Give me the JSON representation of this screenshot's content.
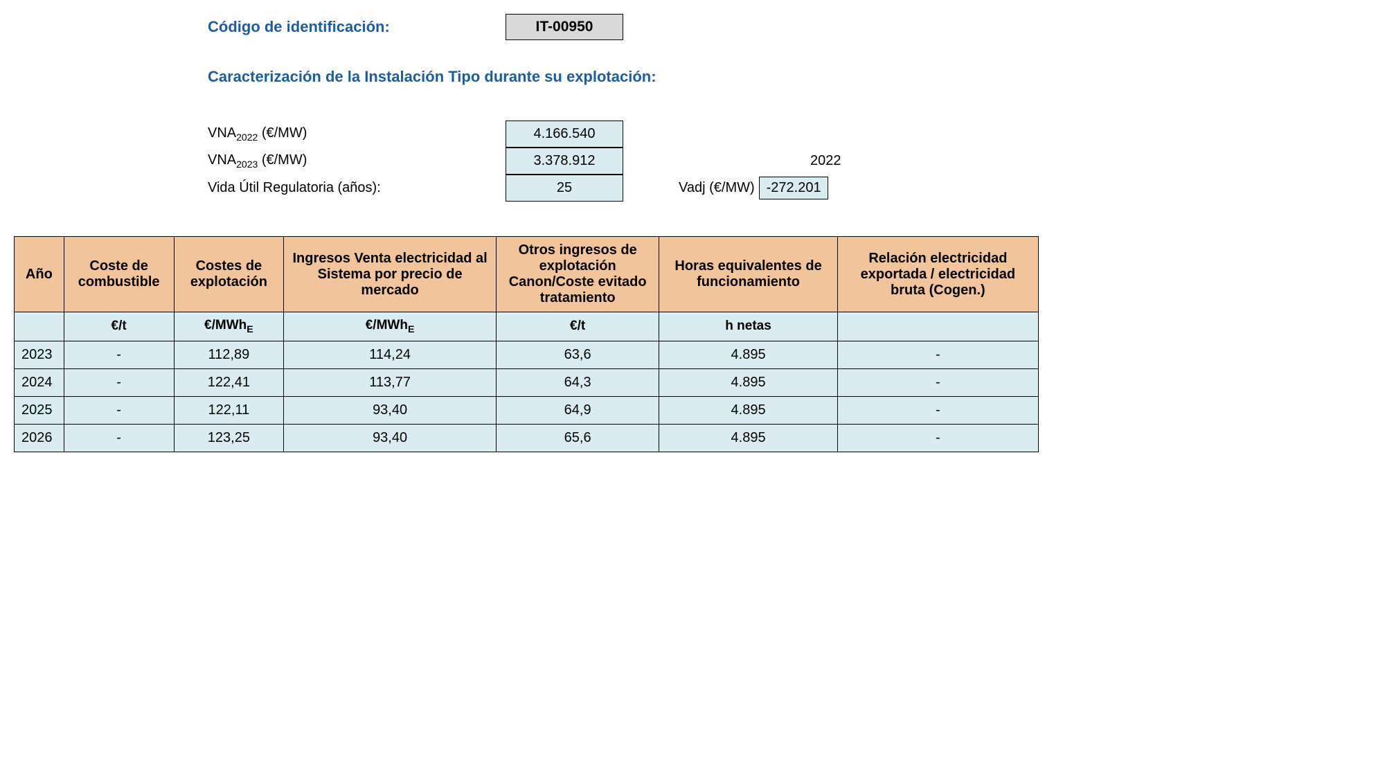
{
  "header": {
    "id_label": "Código de identificación:",
    "id_value": "IT-00950",
    "section_title": "Caracterización de la Instalación Tipo durante su explotación:"
  },
  "params": {
    "vna_2022_label_prefix": "VNA",
    "vna_2022_sub": "2022",
    "vna_2022_unit": " (€/MW)",
    "vna_2022_value": "4.166.540",
    "vna_2023_label_prefix": "VNA",
    "vna_2023_sub": "2023",
    "vna_2023_unit": " (€/MW)",
    "vna_2023_value": "3.378.912",
    "year_value": "2022",
    "vida_label": "Vida Útil Regulatoria (años):",
    "vida_value": "25",
    "vadj_label": "Vadj (€/MW)",
    "vadj_value": "-272.201"
  },
  "table": {
    "header_bg": "#f2c49b",
    "cell_bg": "#d9ecf2",
    "border_color": "#000000",
    "columns": [
      "Año",
      "Coste de combustible",
      "Costes de explotación",
      "Ingresos Venta electricidad al Sistema por precio de mercado",
      "Otros ingresos de explotación Canon/Coste evitado tratamiento",
      "Horas equivalentes de funcionamiento",
      "Relación electricidad exportada / electricidad bruta\n(Cogen.)"
    ],
    "units": [
      "",
      "€/t",
      "€/MWh",
      "€/MWh",
      "€/t",
      "h netas",
      ""
    ],
    "unit_sub": "E",
    "rows": [
      [
        "2023",
        "-",
        "112,89",
        "114,24",
        "63,6",
        "4.895",
        "-"
      ],
      [
        "2024",
        "-",
        "122,41",
        "113,77",
        "64,3",
        "4.895",
        "-"
      ],
      [
        "2025",
        "-",
        "122,11",
        "93,40",
        "64,9",
        "4.895",
        "-"
      ],
      [
        "2026",
        "-",
        "123,25",
        "93,40",
        "65,6",
        "4.895",
        "-"
      ]
    ]
  },
  "colors": {
    "title_color": "#1f5c99",
    "id_box_bg": "#d9d9d9",
    "param_box_bg": "#d9ecf2"
  }
}
